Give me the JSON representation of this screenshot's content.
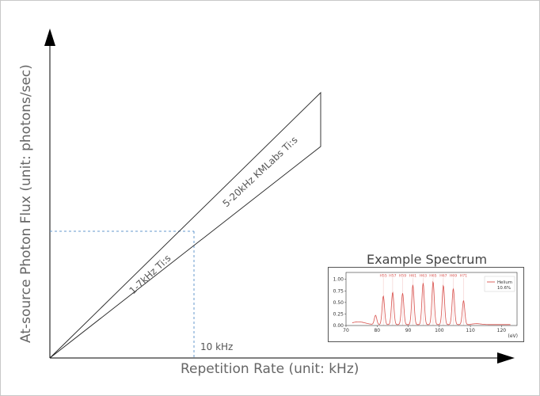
{
  "diagram": {
    "y_axis_label": "At-source Photon Flux (unit: photons/sec)",
    "x_axis_label": "Repetition Rate (unit: kHz)",
    "marker_label": "10 kHz",
    "band_low_label": "1-7kHz Ti:s",
    "band_high_label": "5-20kHz KMLabs Ti:s"
  },
  "inset": {
    "title": "Example Spectrum",
    "x_unit_label": "(eV)",
    "legend": {
      "name": "Helium",
      "value": "10.6%"
    },
    "x_ticks": [
      "70",
      "80",
      "90",
      "100",
      "110",
      "120"
    ],
    "y_ticks": [
      "0.00",
      "0.25",
      "0.50",
      "0.75",
      "1.00"
    ],
    "harmonics": [
      "H55",
      "H57",
      "H59",
      "H61",
      "H63",
      "H65",
      "H67",
      "H69",
      "H71"
    ],
    "colors": {
      "spectrum": "#d9534f",
      "dashed": "#6699cc"
    }
  },
  "chart_data": {
    "type": "line",
    "title": "Example Spectrum",
    "xlabel": "(eV)",
    "xlim": [
      70,
      125
    ],
    "ylim": [
      0,
      1.15
    ],
    "series": [
      {
        "name": "Helium",
        "peaks_ev": [
          79.5,
          82.0,
          85.0,
          88.2,
          91.5,
          94.8,
          98.0,
          101.3,
          104.5,
          107.8
        ],
        "peak_values": [
          0.2,
          0.62,
          0.7,
          0.68,
          0.86,
          0.9,
          0.93,
          0.85,
          0.78,
          0.52
        ]
      }
    ]
  }
}
